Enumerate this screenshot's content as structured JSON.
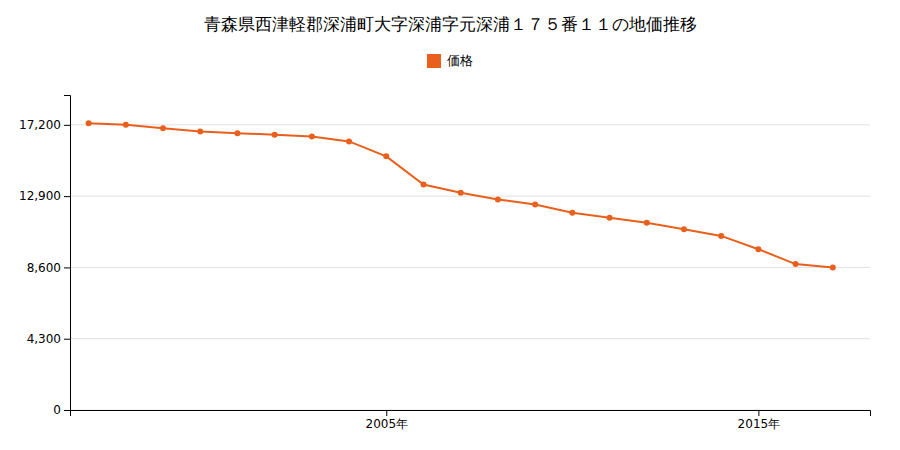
{
  "chart_data": {
    "type": "line",
    "title": "青森県西津軽郡深浦町大字深浦字元深浦１７５番１１の地価推移",
    "x": [
      1997,
      1998,
      1999,
      2000,
      2001,
      2002,
      2003,
      2004,
      2005,
      2006,
      2007,
      2008,
      2009,
      2010,
      2011,
      2012,
      2013,
      2014,
      2015,
      2016,
      2017
    ],
    "series": [
      {
        "name": "価格",
        "color": "#e8601c",
        "marker": "circle",
        "values": [
          17300,
          17200,
          17000,
          16800,
          16700,
          16600,
          16500,
          16200,
          15300,
          13600,
          13100,
          12700,
          12400,
          11900,
          11600,
          11300,
          10900,
          10500,
          9700,
          8800,
          8600
        ]
      }
    ],
    "xlim": [
      1996.5,
      2018
    ],
    "xticks": [
      {
        "value": 2005,
        "label": "2005年"
      },
      {
        "value": 2015,
        "label": "2015年"
      }
    ],
    "ylim": [
      0,
      19000
    ],
    "yticks": [
      0,
      {
        "value": 4300,
        "label": "4,300"
      },
      {
        "value": 8600,
        "label": "8,600"
      },
      {
        "value": 12900,
        "label": "12,900"
      },
      {
        "value": 17200,
        "label": "17,200"
      }
    ],
    "grid": true,
    "legend": "top"
  }
}
